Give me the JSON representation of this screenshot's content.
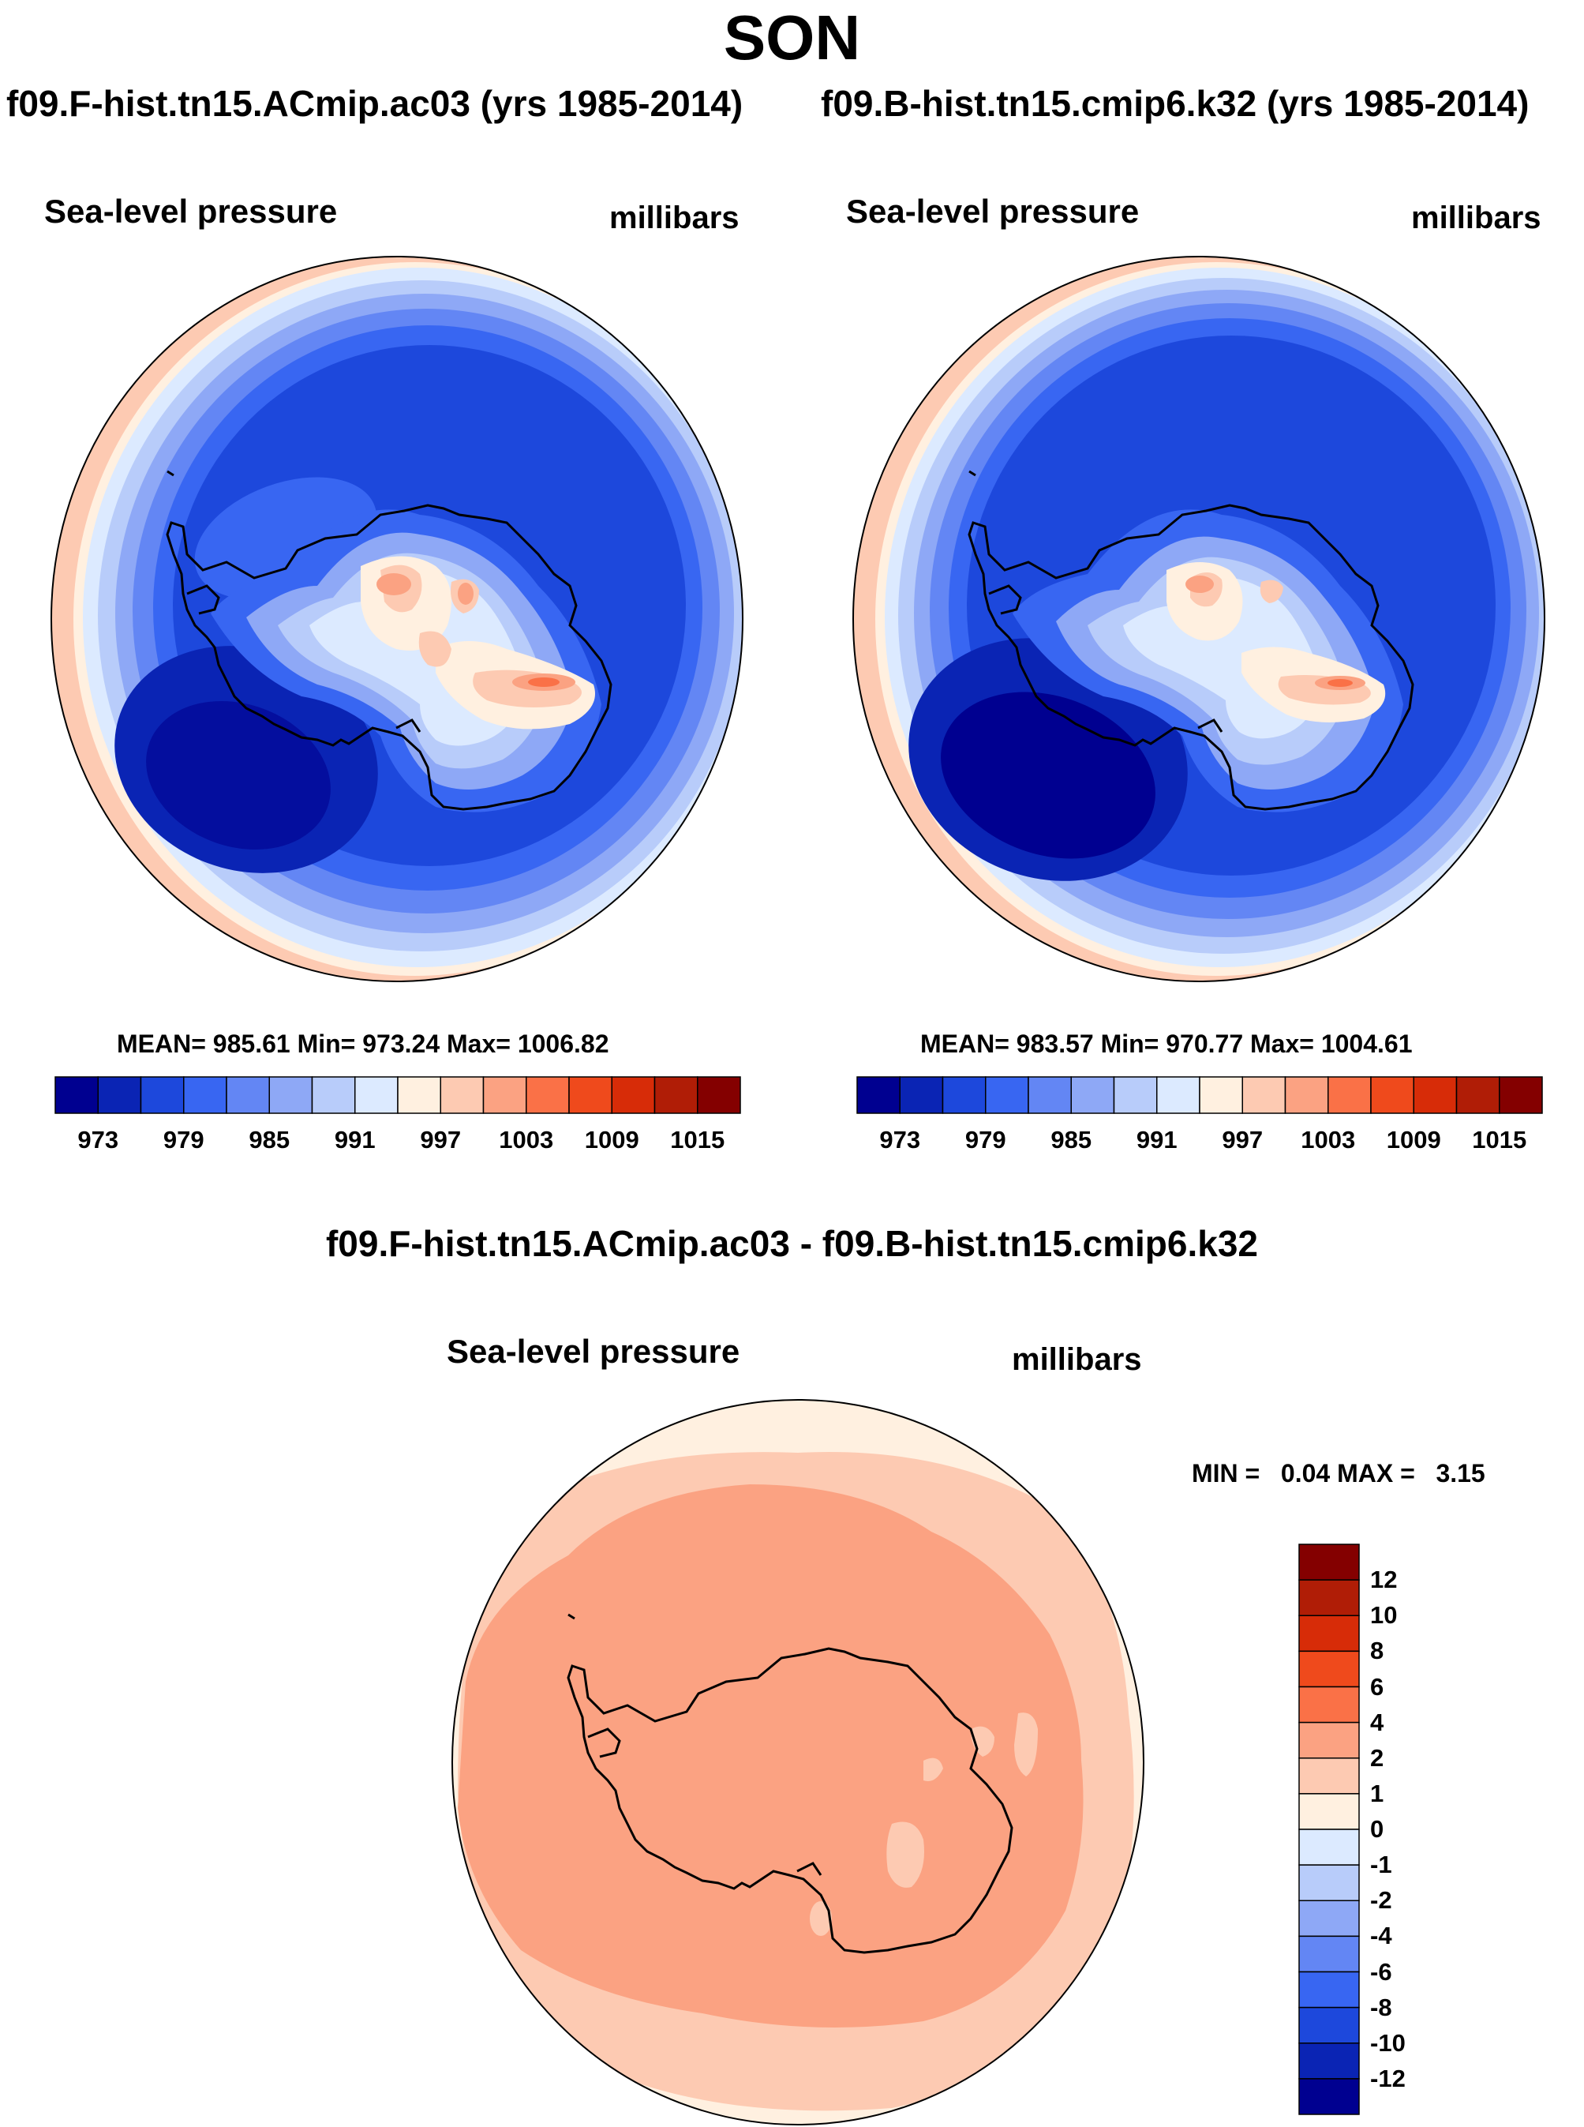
{
  "title": "SON",
  "panels": [
    {
      "case": "f09.F-hist.tn15.ACmip.ac03 (yrs 1985-2014)",
      "variable": "Sea-level pressure",
      "units": "millibars",
      "stats": "MEAN= 985.61  Min= 973.24  Max= 1006.82"
    },
    {
      "case": "f09.B-hist.tn15.cmip6.k32 (yrs 1985-2014)",
      "variable": "Sea-level pressure",
      "units": "millibars",
      "stats": "MEAN= 983.57  Min= 970.77  Max= 1004.61"
    }
  ],
  "diff": {
    "case": "f09.F-hist.tn15.ACmip.ac03 - f09.B-hist.tn15.cmip6.k32",
    "variable": "Sea-level pressure",
    "units": "millibars",
    "minmax": "MIN =   0.04 MAX =   3.15"
  },
  "colorbar": {
    "colors": [
      "#000090",
      "#0a24b4",
      "#1d48dc",
      "#3866f2",
      "#6386f4",
      "#8ea8f6",
      "#b8ccfa",
      "#dceaff",
      "#fff0e0",
      "#fdcab2",
      "#fba282",
      "#fa7147",
      "#ef4a1c",
      "#d72c08",
      "#b01d06",
      "#840000"
    ],
    "labels": [
      "973",
      "979",
      "985",
      "991",
      "997",
      "1003",
      "1009",
      "1015"
    ]
  },
  "diff_colorbar": {
    "colors": [
      "#000090",
      "#0a24b4",
      "#1d48dc",
      "#3866f2",
      "#6386f4",
      "#8ea8f6",
      "#b8ccfa",
      "#dceaff",
      "#fff0e0",
      "#fdcab2",
      "#fba282",
      "#fa7147",
      "#ef4a1c",
      "#d72c08",
      "#b01d06",
      "#840000"
    ],
    "labels": [
      "-12",
      "-10",
      "-8",
      "-6",
      "-4",
      "-2",
      "-1",
      "0",
      "1",
      "2",
      "4",
      "6",
      "8",
      "10",
      "12"
    ]
  }
}
